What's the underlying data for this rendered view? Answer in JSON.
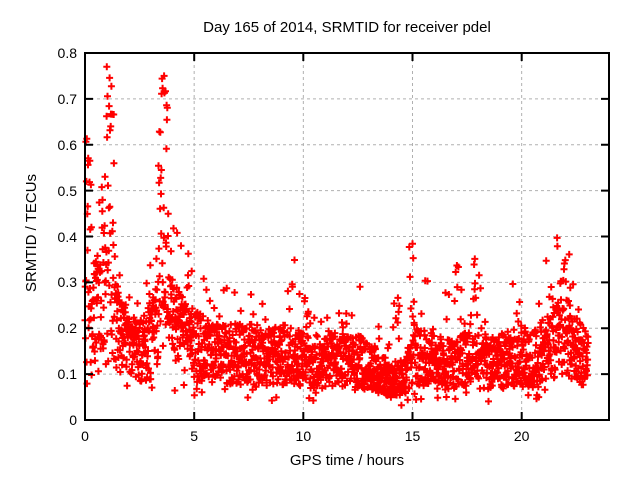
{
  "chart_data": {
    "type": "scatter",
    "title": "Day 165 of 2014, SRMTID for receiver pdel",
    "xlabel": "GPS time / hours",
    "ylabel": "SRMTID / TECUs",
    "xlim": [
      0,
      24
    ],
    "ylim": [
      0,
      0.8
    ],
    "xticks": [
      0,
      5,
      10,
      15,
      20
    ],
    "yticks": [
      0,
      0.1,
      0.2,
      0.3,
      0.4,
      0.5,
      0.6,
      0.7,
      0.8
    ],
    "grid": "dashed-major-both-axes",
    "legend": "none",
    "marker": "plus",
    "marker_color": "#ff0000",
    "marker_size_px": 7,
    "grid_color": "#b0b0b0",
    "border_color": "#000000",
    "background_color": "#ffffff",
    "series_model": {
      "description": "~2200 red plus markers sampled every ~0.0104 h from hour 0 to 23.05; dense noisy band around the median curve with bursty vertical columns reaching the envelope maxima",
      "t_start": 0,
      "t_end": 23.05,
      "dt": 0.0104167,
      "floor": 0.03,
      "seed": 20140165,
      "burst_interval": 0.2,
      "envelope_max": [
        [
          0,
          0.6
        ],
        [
          0.15,
          0.73
        ],
        [
          0.35,
          0.55
        ],
        [
          0.6,
          0.5
        ],
        [
          0.85,
          0.65
        ],
        [
          1.0,
          0.78
        ],
        [
          1.3,
          0.74
        ],
        [
          1.6,
          0.45
        ],
        [
          2.0,
          0.3
        ],
        [
          2.4,
          0.33
        ],
        [
          2.8,
          0.3
        ],
        [
          3.2,
          0.4
        ],
        [
          3.45,
          0.79
        ],
        [
          3.8,
          0.76
        ],
        [
          4.0,
          0.55
        ],
        [
          4.3,
          0.42
        ],
        [
          4.6,
          0.33
        ],
        [
          5.0,
          0.48
        ],
        [
          5.2,
          0.45
        ],
        [
          5.5,
          0.3
        ],
        [
          6.0,
          0.28
        ],
        [
          6.5,
          0.31
        ],
        [
          7.0,
          0.33
        ],
        [
          7.5,
          0.28
        ],
        [
          8.0,
          0.26
        ],
        [
          8.6,
          0.3
        ],
        [
          9.2,
          0.28
        ],
        [
          9.7,
          0.37
        ],
        [
          10.2,
          0.24
        ],
        [
          10.8,
          0.22
        ],
        [
          11.4,
          0.24
        ],
        [
          11.9,
          0.26
        ],
        [
          12.2,
          0.35
        ],
        [
          12.6,
          0.29
        ],
        [
          13.1,
          0.24
        ],
        [
          13.6,
          0.2
        ],
        [
          14.0,
          0.22
        ],
        [
          14.3,
          0.33
        ],
        [
          14.6,
          0.2
        ],
        [
          14.95,
          0.46
        ],
        [
          15.3,
          0.36
        ],
        [
          15.6,
          0.33
        ],
        [
          16.0,
          0.26
        ],
        [
          16.5,
          0.3
        ],
        [
          17.0,
          0.38
        ],
        [
          17.4,
          0.26
        ],
        [
          17.85,
          0.37
        ],
        [
          18.15,
          0.34
        ],
        [
          18.6,
          0.26
        ],
        [
          19.1,
          0.28
        ],
        [
          19.55,
          0.33
        ],
        [
          20.0,
          0.26
        ],
        [
          20.5,
          0.26
        ],
        [
          20.9,
          0.33
        ],
        [
          21.2,
          0.41
        ],
        [
          21.45,
          0.44
        ],
        [
          21.75,
          0.38
        ],
        [
          22.05,
          0.43
        ],
        [
          22.35,
          0.36
        ],
        [
          22.6,
          0.3
        ],
        [
          22.85,
          0.24
        ],
        [
          23.1,
          0.2
        ]
      ],
      "median": [
        [
          0,
          0.2
        ],
        [
          0.3,
          0.22
        ],
        [
          0.8,
          0.26
        ],
        [
          1.2,
          0.24
        ],
        [
          1.7,
          0.17
        ],
        [
          2.5,
          0.15
        ],
        [
          3.0,
          0.16
        ],
        [
          3.6,
          0.24
        ],
        [
          4.2,
          0.19
        ],
        [
          5.0,
          0.16
        ],
        [
          6.0,
          0.14
        ],
        [
          7.0,
          0.14
        ],
        [
          8.0,
          0.13
        ],
        [
          9.0,
          0.14
        ],
        [
          10.0,
          0.13
        ],
        [
          11.0,
          0.12
        ],
        [
          12.0,
          0.13
        ],
        [
          13.0,
          0.12
        ],
        [
          13.8,
          0.09
        ],
        [
          14.2,
          0.085
        ],
        [
          14.6,
          0.09
        ],
        [
          15.0,
          0.14
        ],
        [
          15.6,
          0.13
        ],
        [
          16.5,
          0.12
        ],
        [
          17.5,
          0.13
        ],
        [
          18.5,
          0.12
        ],
        [
          19.5,
          0.13
        ],
        [
          20.5,
          0.13
        ],
        [
          21.3,
          0.16
        ],
        [
          22.0,
          0.18
        ],
        [
          22.5,
          0.15
        ],
        [
          23.1,
          0.12
        ]
      ],
      "bursts": [
        [
          0.15,
          0.15,
          0.73,
          0.8
        ],
        [
          1.05,
          0.28,
          0.78,
          0.85
        ],
        [
          3.6,
          0.22,
          0.79,
          0.95
        ],
        [
          5.1,
          0.1,
          0.48,
          0.6
        ],
        [
          6.5,
          0.08,
          0.31,
          0.45
        ],
        [
          9.75,
          0.08,
          0.37,
          0.6
        ],
        [
          12.2,
          0.08,
          0.35,
          0.6
        ],
        [
          14.3,
          0.07,
          0.33,
          0.5
        ],
        [
          15.0,
          0.12,
          0.46,
          0.75
        ],
        [
          15.5,
          0.1,
          0.35,
          0.6
        ],
        [
          17.0,
          0.08,
          0.38,
          0.5
        ],
        [
          17.9,
          0.08,
          0.37,
          0.55
        ],
        [
          19.6,
          0.08,
          0.33,
          0.5
        ],
        [
          21.2,
          0.12,
          0.41,
          0.7
        ],
        [
          21.9,
          0.3,
          0.43,
          0.75
        ],
        [
          22.4,
          0.1,
          0.36,
          0.6
        ]
      ]
    }
  }
}
